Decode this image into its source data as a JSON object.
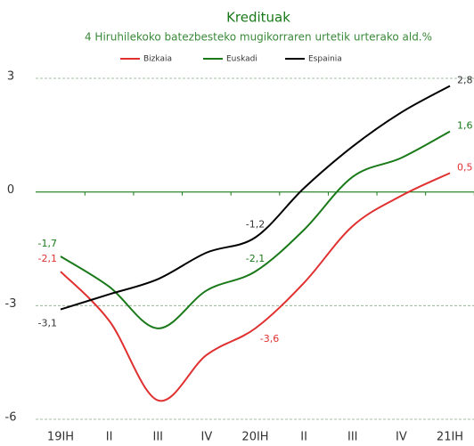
{
  "chart_data": {
    "type": "line",
    "title": "Kredituak",
    "subtitle": "4 Hiruhilekoko batezbesteko mugikorraren urtetik urterako ald.%",
    "categories": [
      "19IH",
      "II",
      "III",
      "IV",
      "20IH",
      "II",
      "III",
      "IV",
      "21IH"
    ],
    "series": [
      {
        "name": "Bizkaia",
        "color": "#e03030",
        "values": [
          -2.1,
          -3.4,
          -5.5,
          -4.3,
          -3.6,
          -2.4,
          -0.9,
          -0.1,
          0.5
        ],
        "value_labels": [
          "-2,1",
          null,
          null,
          null,
          "-3,6",
          null,
          null,
          null,
          "0,5"
        ]
      },
      {
        "name": "Euskadi",
        "color": "#1a7a1a",
        "values": [
          -1.7,
          -2.5,
          -3.6,
          -2.6,
          -2.1,
          -1.0,
          0.4,
          0.9,
          1.6
        ],
        "value_labels": [
          "-1,7",
          null,
          null,
          null,
          "-2,1",
          null,
          null,
          null,
          "1,6"
        ]
      },
      {
        "name": "Espainia",
        "color": "#000000",
        "values": [
          -3.1,
          -2.7,
          -2.3,
          -1.6,
          -1.2,
          0.1,
          1.2,
          2.1,
          2.8
        ],
        "value_labels": [
          "-3,1",
          null,
          null,
          null,
          "-1,2",
          null,
          null,
          null,
          "2,8"
        ]
      }
    ],
    "ylim": [
      -6,
      3
    ],
    "yticks": [
      -6,
      -3,
      0,
      3
    ],
    "grid": true,
    "legend": "top"
  }
}
